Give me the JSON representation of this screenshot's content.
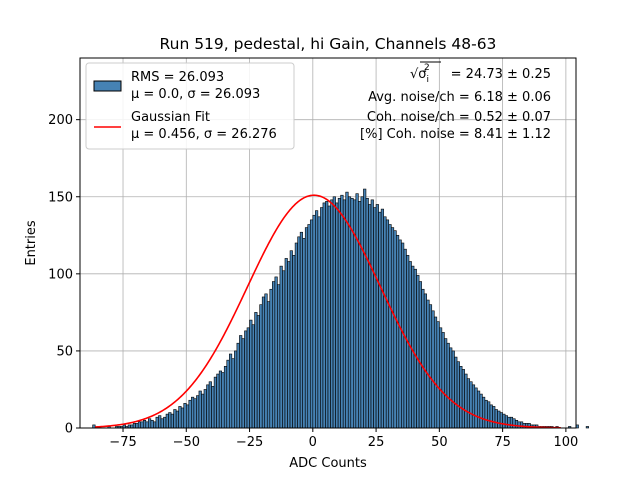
{
  "chart_data": {
    "type": "bar",
    "title": "Run 519, pedestal, hi Gain, Channels 48-63",
    "xlabel": "ADC Counts",
    "ylabel": "Entries",
    "xlim": [
      -92,
      104
    ],
    "ylim": [
      0,
      240
    ],
    "xticks": [
      -75,
      -50,
      -25,
      0,
      25,
      50,
      75,
      100
    ],
    "xtick_labels": [
      "−75",
      "−50",
      "−25",
      "0",
      "25",
      "50",
      "75",
      "100"
    ],
    "yticks": [
      0,
      50,
      100,
      150,
      200
    ],
    "ytick_labels": [
      "0",
      "50",
      "100",
      "150",
      "200"
    ],
    "grid": true,
    "bar_color": "#4682b4",
    "fit_color": "#ff0000",
    "bins": {
      "start": -87,
      "width": 1,
      "values": [
        2,
        0,
        0,
        0,
        0,
        0,
        1,
        0,
        0,
        1,
        1,
        1,
        2,
        1,
        2,
        2,
        3,
        3,
        4,
        4,
        5,
        4,
        6,
        5,
        4,
        7,
        8,
        6,
        7,
        9,
        10,
        9,
        12,
        11,
        14,
        13,
        16,
        15,
        18,
        20,
        19,
        21,
        24,
        22,
        25,
        28,
        30,
        27,
        33,
        35,
        37,
        36,
        40,
        44,
        48,
        45,
        50,
        55,
        60,
        58,
        63,
        65,
        70,
        67,
        75,
        73,
        80,
        85,
        87,
        82,
        90,
        95,
        98,
        93,
        105,
        102,
        110,
        108,
        115,
        112,
        120,
        124,
        127,
        123,
        130,
        132,
        135,
        138,
        141,
        137,
        143,
        146,
        147,
        144,
        148,
        150,
        146,
        149,
        151,
        148,
        153,
        150,
        149,
        148,
        152,
        147,
        150,
        155,
        149,
        145,
        148,
        143,
        145,
        140,
        142,
        137,
        135,
        132,
        130,
        128,
        125,
        122,
        120,
        116,
        112,
        108,
        105,
        103,
        99,
        95,
        90,
        87,
        83,
        80,
        76,
        72,
        69,
        65,
        62,
        58,
        55,
        52,
        50,
        46,
        43,
        40,
        38,
        35,
        32,
        30,
        28,
        26,
        24,
        22,
        20,
        18,
        17,
        15,
        14,
        12,
        11,
        10,
        9,
        8,
        7,
        7,
        6,
        5,
        4,
        4,
        3,
        3,
        3,
        2,
        2,
        2,
        1,
        1,
        1,
        1,
        1,
        1,
        0,
        1,
        0,
        0,
        0,
        0,
        1,
        0,
        0,
        2,
        0,
        0,
        0,
        1
      ]
    },
    "fit": {
      "name": "Gaussian Fit",
      "mu": 0.456,
      "sigma": 26.276,
      "amplitude": 151
    },
    "legend": {
      "position": "top-left",
      "entries": [
        {
          "kind": "bar",
          "line1": "RMS = 26.093",
          "line2": "μ = 0.0, σ = 26.093"
        },
        {
          "kind": "line",
          "line1": "Gaussian Fit",
          "line2": "μ = 0.456, σ = 26.276"
        }
      ]
    },
    "annotations": [
      {
        "prefix": "√σ",
        "sub": "i",
        "sup": "2",
        "value": " = 24.73 ± 0.25"
      },
      {
        "text": "Avg. noise/ch = 6.18 ± 0.06"
      },
      {
        "text": "Coh. noise/ch = 0.52 ± 0.07"
      },
      {
        "text": "[%] Coh. noise = 8.41 ± 1.12"
      }
    ]
  }
}
